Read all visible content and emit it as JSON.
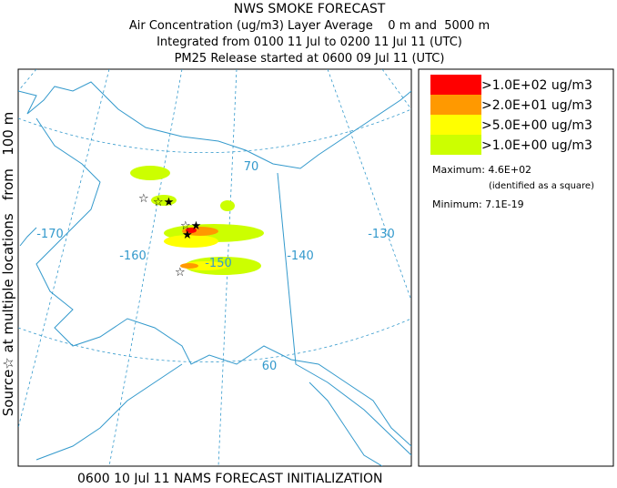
{
  "header": {
    "title": "NWS SMOKE FORECAST",
    "lines": [
      "Air Concentration (ug/m3) Layer Average    0 m and  5000 m",
      "Integrated from 0100 11 Jul to 0200 11 Jul 11 (UTC)",
      "PM25 Release started at 0600 09 Jul 11 (UTC)"
    ]
  },
  "side_label": "Source☆ at multiple locations   from   100 m",
  "legend": {
    "entries": [
      {
        "label": ">1.0E+02 ug/m3",
        "color": "#ff0000"
      },
      {
        "label": ">2.0E+01 ug/m3",
        "color": "#ff9900"
      },
      {
        "label": ">5.0E+00 ug/m3",
        "color": "#ffff00"
      },
      {
        "label": ">1.0E+00 ug/m3",
        "color": "#ccff00"
      }
    ],
    "maximum": "Maximum: 4.6E+02",
    "maximum_note": "(identified as a square)",
    "minimum": "Minimum: 7.1E-19"
  },
  "map": {
    "labels": [
      "70",
      "-170",
      "-160",
      "-150",
      "-140",
      "-130",
      "60"
    ]
  },
  "footer": "0600 10 Jul 11 NAMS FORECAST INITIALIZATION"
}
